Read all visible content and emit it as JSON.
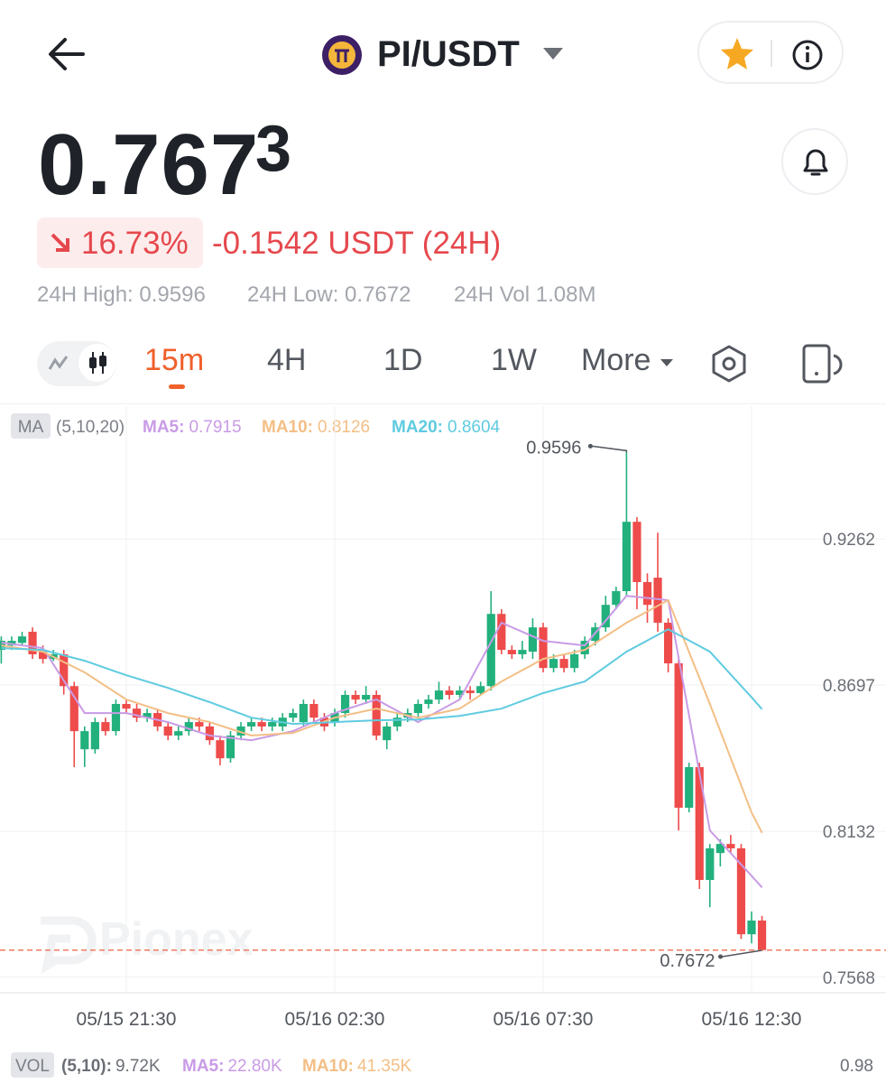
{
  "header": {
    "pair": "PI/USDT"
  },
  "price": {
    "main": "0.767",
    "sup": "3",
    "change_pct": "16.73%",
    "change_abs": "-0.1542 USDT (24H)"
  },
  "stats": [
    "24H High: 0.9596",
    "24H Low: 0.7672",
    "24H Vol 1.08M"
  ],
  "tabs": [
    "15m",
    "4H",
    "1D",
    "1W",
    "More"
  ],
  "chart_data": {
    "type": "candlestick",
    "indicator_label": "MA",
    "indicator_params": "(5,10,20)",
    "ma_legend": [
      {
        "label": "MA5:",
        "value": "0.7915",
        "color": "#c99be6"
      },
      {
        "label": "MA10:",
        "value": "0.8126",
        "color": "#f3bf86"
      },
      {
        "label": "MA20:",
        "value": "0.8604",
        "color": "#5fcbe0"
      }
    ],
    "categories": [
      null,
      null,
      null,
      null,
      null,
      null,
      null,
      null,
      null,
      null,
      null,
      null,
      "05/15 21:30",
      null,
      null,
      null,
      null,
      null,
      null,
      null,
      null,
      null,
      null,
      null,
      null,
      null,
      null,
      null,
      null,
      null,
      null,
      null,
      "05/16 02:30",
      null,
      null,
      null,
      null,
      null,
      null,
      null,
      null,
      null,
      null,
      null,
      null,
      null,
      null,
      null,
      null,
      null,
      null,
      null,
      "05/16 07:30",
      null,
      null,
      null,
      null,
      null,
      null,
      null,
      null,
      null,
      null,
      null,
      null,
      null,
      null,
      null,
      null,
      null,
      null,
      null,
      "05/16 12:30",
      null
    ],
    "open": [
      0.8833,
      0.885,
      0.886,
      0.8903,
      0.8833,
      0.8798,
      0.8816,
      0.8693,
      0.8449,
      0.8449,
      0.8554,
      0.8519,
      0.8624,
      0.8606,
      0.8571,
      0.8589,
      0.8537,
      0.8502,
      0.8519,
      0.8554,
      0.8537,
      0.8484,
      0.8414,
      0.8502,
      0.8537,
      0.8554,
      0.8537,
      0.8537,
      0.8571,
      0.8554,
      0.8624,
      0.8571,
      0.8554,
      0.8589,
      0.8659,
      0.8641,
      0.8659,
      0.8484,
      0.8537,
      0.8571,
      0.8589,
      0.8624,
      0.8641,
      0.8676,
      0.8659,
      0.8676,
      0.8666,
      0.8693,
      0.8972,
      0.8833,
      0.8816,
      0.8826,
      0.892,
      0.8763,
      0.8798,
      0.8763,
      0.8816,
      0.8868,
      0.892,
      0.9007,
      0.906,
      0.9328,
      0.9095,
      0.9112,
      0.8938,
      0.8781,
      0.8223,
      0.838,
      0.7944,
      0.8048,
      0.8083,
      0.8066,
      0.7734,
      0.7787
    ],
    "high": [
      0.8885,
      0.8885,
      0.8903,
      0.892,
      0.885,
      0.8833,
      0.8833,
      0.871,
      0.8537,
      0.8571,
      0.8571,
      0.8641,
      0.8641,
      0.8624,
      0.8606,
      0.8606,
      0.8554,
      0.8537,
      0.8571,
      0.8571,
      0.8554,
      0.8502,
      0.8519,
      0.8554,
      0.8571,
      0.8571,
      0.8571,
      0.8589,
      0.8606,
      0.8641,
      0.8641,
      0.8589,
      0.8606,
      0.8676,
      0.8676,
      0.8693,
      0.8676,
      0.8554,
      0.8589,
      0.8606,
      0.8641,
      0.8659,
      0.871,
      0.8693,
      0.8693,
      0.8693,
      0.871,
      0.906,
      0.899,
      0.885,
      0.8868,
      0.8955,
      0.8938,
      0.8816,
      0.8816,
      0.8833,
      0.8885,
      0.8938,
      0.9042,
      0.9077,
      0.9596,
      0.9346,
      0.9129,
      0.9286,
      0.8955,
      0.8798,
      0.8397,
      0.8397,
      0.8083,
      0.8101,
      0.8118,
      0.8083,
      0.7822,
      0.7805
    ],
    "low": [
      0.878,
      0.8833,
      0.885,
      0.8798,
      0.878,
      0.879,
      0.866,
      0.838,
      0.838,
      0.8432,
      0.8502,
      0.8502,
      0.8589,
      0.8554,
      0.8554,
      0.8519,
      0.8484,
      0.8484,
      0.8502,
      0.8519,
      0.8466,
      0.8387,
      0.8397,
      0.8484,
      0.8519,
      0.8519,
      0.8519,
      0.8519,
      0.8554,
      0.8537,
      0.8554,
      0.8519,
      0.8537,
      0.8571,
      0.8624,
      0.8624,
      0.8484,
      0.8449,
      0.8519,
      0.8554,
      0.8571,
      0.8606,
      0.8624,
      0.8641,
      0.8641,
      0.8641,
      0.8659,
      0.8676,
      0.8816,
      0.8798,
      0.8798,
      0.8798,
      0.8746,
      0.8746,
      0.8746,
      0.8746,
      0.8798,
      0.885,
      0.8903,
      0.899,
      0.9042,
      0.899,
      0.8938,
      0.8903,
      0.8746,
      0.8135,
      0.8205,
      0.7909,
      0.7839,
      0.7996,
      0.8048,
      0.7716,
      0.7699,
      0.7672
    ],
    "close": [
      0.8868,
      0.8868,
      0.8885,
      0.8816,
      0.8798,
      0.8816,
      0.8693,
      0.8519,
      0.8519,
      0.8554,
      0.8519,
      0.8624,
      0.8606,
      0.8571,
      0.8589,
      0.8537,
      0.8502,
      0.8519,
      0.8554,
      0.8537,
      0.8484,
      0.8414,
      0.8502,
      0.8537,
      0.8554,
      0.8537,
      0.8554,
      0.8571,
      0.8589,
      0.8624,
      0.8571,
      0.8537,
      0.8589,
      0.8659,
      0.8641,
      0.8659,
      0.8502,
      0.8537,
      0.8571,
      0.8589,
      0.8624,
      0.8641,
      0.8676,
      0.8659,
      0.8676,
      0.8666,
      0.8693,
      0.8972,
      0.8833,
      0.8816,
      0.8833,
      0.892,
      0.8763,
      0.8798,
      0.8763,
      0.8816,
      0.8868,
      0.892,
      0.9007,
      0.906,
      0.9328,
      0.9095,
      0.9007,
      0.8938,
      0.8781,
      0.8223,
      0.838,
      0.7944,
      0.8066,
      0.8083,
      0.8066,
      0.7734,
      0.7787,
      0.7673
    ],
    "up_color": "#22b07d",
    "down_color": "#ee4b4b",
    "ma_series": [
      {
        "color": "#c99be6",
        "x": [
          0,
          4,
          8,
          12,
          16,
          20,
          24,
          28,
          32,
          36,
          40,
          44,
          48,
          52,
          56,
          60,
          64,
          68,
          72,
          73
        ],
        "values": [
          0.8861,
          0.884,
          0.8589,
          0.8589,
          0.8554,
          0.8502,
          0.8484,
          0.8519,
          0.8589,
          0.8641,
          0.8554,
          0.8641,
          0.8938,
          0.8868,
          0.885,
          0.9042,
          0.9025,
          0.8135,
          0.796,
          0.7915
        ]
      },
      {
        "color": "#f3bf86",
        "x": [
          0,
          4,
          8,
          12,
          16,
          20,
          24,
          28,
          32,
          36,
          40,
          44,
          48,
          52,
          56,
          60,
          64,
          68,
          72,
          73
        ],
        "values": [
          0.885,
          0.8826,
          0.8746,
          0.8641,
          0.8589,
          0.8554,
          0.8502,
          0.8512,
          0.8571,
          0.8606,
          0.8571,
          0.8606,
          0.8711,
          0.8798,
          0.8833,
          0.8938,
          0.9025,
          0.8624,
          0.8205,
          0.8126
        ]
      },
      {
        "color": "#5fcbe0",
        "x": [
          0,
          4,
          8,
          12,
          16,
          20,
          24,
          28,
          32,
          36,
          40,
          44,
          48,
          52,
          56,
          60,
          64,
          68,
          72,
          73
        ],
        "values": [
          0.884,
          0.8833,
          0.8791,
          0.8735,
          0.8686,
          0.8631,
          0.8571,
          0.8547,
          0.8554,
          0.8561,
          0.8564,
          0.8578,
          0.8606,
          0.8666,
          0.8711,
          0.8826,
          0.8913,
          0.8826,
          0.865,
          0.8604
        ]
      }
    ],
    "high_label": 0.9596,
    "low_label": 0.7672,
    "ylim": [
      0.7508,
      0.9775
    ],
    "yticks": [
      0.9262,
      0.8697,
      0.8132,
      0.7568
    ],
    "grid": true,
    "watermark": "Pionex",
    "volume": {
      "label": "VOL",
      "params": "(5,10):",
      "value": "9.72K",
      "ma5_label": "MA5:",
      "ma5": "22.80K",
      "ma10_label": "MA10:",
      "ma10": "41.35K",
      "axis_top": "0.98"
    }
  }
}
